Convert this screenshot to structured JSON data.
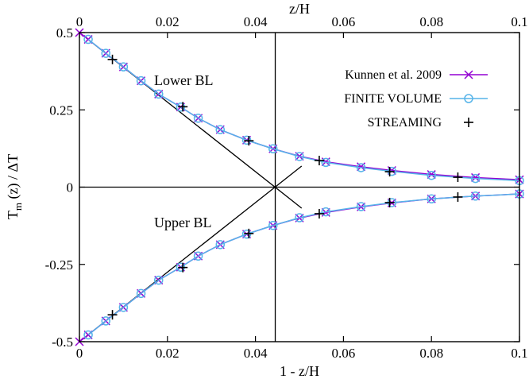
{
  "chart_data": {
    "type": "line",
    "xlabel_bottom": "1 - z/H",
    "xlabel_top": "z/H",
    "ylabel_main": "T",
    "ylabel_sub": "m",
    "ylabel_rest": " (z) / ΔT",
    "xlim": [
      0,
      0.1
    ],
    "ylim": [
      -0.5,
      0.5
    ],
    "x_ticks": [
      0,
      0.02,
      0.04,
      0.06,
      0.08,
      0.1
    ],
    "x_tick_labels": [
      "0",
      "0.02",
      "0.04",
      "0.06",
      "0.08",
      "0.1"
    ],
    "y_ticks": [
      -0.5,
      -0.25,
      0,
      0.25,
      0.5
    ],
    "y_tick_labels": [
      "-0.5",
      "-0.25",
      "0",
      "0.25",
      "0.5"
    ],
    "annotations": {
      "lower": "Lower BL",
      "upper": "Upper BL"
    },
    "reference_lines": {
      "vertical_x": 0.0445,
      "lower_tangent": {
        "x": [
          0,
          0.0505
        ],
        "y": [
          0.5,
          -0.068
        ]
      },
      "upper_tangent": {
        "x": [
          0,
          0.0505
        ],
        "y": [
          -0.5,
          0.068
        ]
      }
    },
    "legend_position": "top-right",
    "series": [
      {
        "name": "Kunnen et al. 2009",
        "color": "#9400D3",
        "marker": "x",
        "branch": "lower",
        "x": [
          0,
          0.002,
          0.006,
          0.01,
          0.014,
          0.018,
          0.023,
          0.027,
          0.032,
          0.038,
          0.044,
          0.05,
          0.056,
          0.064,
          0.071,
          0.08,
          0.09,
          0.1
        ],
        "y": [
          0.5,
          0.478,
          0.433,
          0.389,
          0.344,
          0.301,
          0.259,
          0.223,
          0.186,
          0.152,
          0.124,
          0.1,
          0.082,
          0.066,
          0.054,
          0.041,
          0.031,
          0.024
        ]
      },
      {
        "name": "Kunnen et al. 2009 (upper)",
        "color": "#9400D3",
        "marker": "x",
        "branch": "upper",
        "x": [
          0,
          0.002,
          0.006,
          0.01,
          0.014,
          0.018,
          0.023,
          0.027,
          0.032,
          0.038,
          0.044,
          0.05,
          0.056,
          0.064,
          0.071,
          0.08,
          0.09,
          0.1
        ],
        "y": [
          -0.5,
          -0.478,
          -0.433,
          -0.389,
          -0.344,
          -0.301,
          -0.259,
          -0.223,
          -0.186,
          -0.152,
          -0.124,
          -0.1,
          -0.082,
          -0.064,
          -0.051,
          -0.038,
          -0.029,
          -0.022
        ]
      },
      {
        "name": "FINITE VOLUME",
        "color": "#56B4E9",
        "marker": "circle",
        "branch": "lower",
        "x": [
          0.002,
          0.006,
          0.01,
          0.014,
          0.018,
          0.023,
          0.027,
          0.032,
          0.038,
          0.044,
          0.05,
          0.056,
          0.064,
          0.071,
          0.08,
          0.09,
          0.1
        ],
        "y": [
          0.478,
          0.433,
          0.389,
          0.344,
          0.301,
          0.259,
          0.223,
          0.186,
          0.152,
          0.124,
          0.099,
          0.08,
          0.063,
          0.051,
          0.038,
          0.028,
          0.021
        ]
      },
      {
        "name": "FINITE VOLUME (upper)",
        "color": "#56B4E9",
        "marker": "circle",
        "branch": "upper",
        "x": [
          0.002,
          0.006,
          0.01,
          0.014,
          0.018,
          0.023,
          0.027,
          0.032,
          0.038,
          0.044,
          0.05,
          0.056,
          0.064,
          0.071,
          0.08,
          0.09,
          0.1
        ],
        "y": [
          -0.478,
          -0.433,
          -0.389,
          -0.344,
          -0.301,
          -0.259,
          -0.223,
          -0.186,
          -0.152,
          -0.124,
          -0.099,
          -0.08,
          -0.063,
          -0.05,
          -0.038,
          -0.029,
          -0.022
        ]
      },
      {
        "name": "STREAMING",
        "color": "#000000",
        "marker": "plus",
        "branch": "both",
        "x": [
          0.0075,
          0.0235,
          0.0385,
          0.0545,
          0.0705,
          0.086,
          0.0075,
          0.0235,
          0.0385,
          0.0545,
          0.0705,
          0.086
        ],
        "y": [
          0.413,
          0.26,
          0.15,
          0.086,
          0.05,
          0.032,
          -0.413,
          -0.26,
          -0.15,
          -0.086,
          -0.05,
          -0.032
        ]
      }
    ]
  }
}
